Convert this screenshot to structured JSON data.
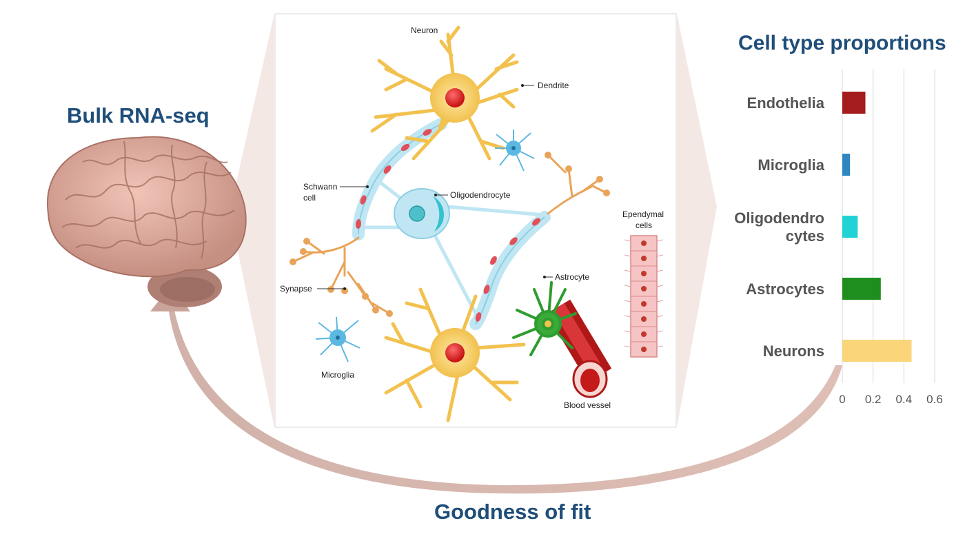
{
  "labels": {
    "bulk_title": "Bulk RNA-seq",
    "fit_title": "Goodness of fit",
    "chart_title": "Cell type proportions"
  },
  "illustration": {
    "neuron": "Neuron",
    "dendrite": "Dendrite",
    "schwann_line1": "Schwann",
    "schwann_line2": "cell",
    "oligodendrocyte": "Oligodendrocyte",
    "ependymal_line1": "Ependymal",
    "ependymal_line2": "cells",
    "synapse": "Synapse",
    "astrocyte": "Astrocyte",
    "microglia": "Microglia",
    "blood_vessel": "Blood vessel"
  },
  "colors": {
    "heading": "#1f4e79",
    "arrow": "#c9a49a",
    "endothelia": "#a51c1c",
    "microglia": "#2e86c1",
    "oligodendrocytes": "#22d3d6",
    "astrocytes": "#1e8f1e",
    "neurons": "#fad57a"
  },
  "chart_data": {
    "type": "bar",
    "orientation": "horizontal",
    "title": "Cell type proportions",
    "categories": [
      "Endothelia",
      "Microglia",
      "Oligodendro cytes",
      "Astrocytes",
      "Neurons"
    ],
    "category_lines": [
      [
        "Endothelia"
      ],
      [
        "Microglia"
      ],
      [
        "Oligodendro",
        "cytes"
      ],
      [
        "Astrocytes"
      ],
      [
        "Neurons"
      ]
    ],
    "values": [
      0.15,
      0.05,
      0.1,
      0.25,
      0.45
    ],
    "colors": [
      "#a51c1c",
      "#2e86c1",
      "#22d3d6",
      "#1e8f1e",
      "#fad57a"
    ],
    "xlim": [
      0,
      0.6
    ],
    "xticks": [
      "0",
      "0.2",
      "0.4",
      "0.6"
    ],
    "grid": true,
    "xlabel": "",
    "ylabel": ""
  }
}
